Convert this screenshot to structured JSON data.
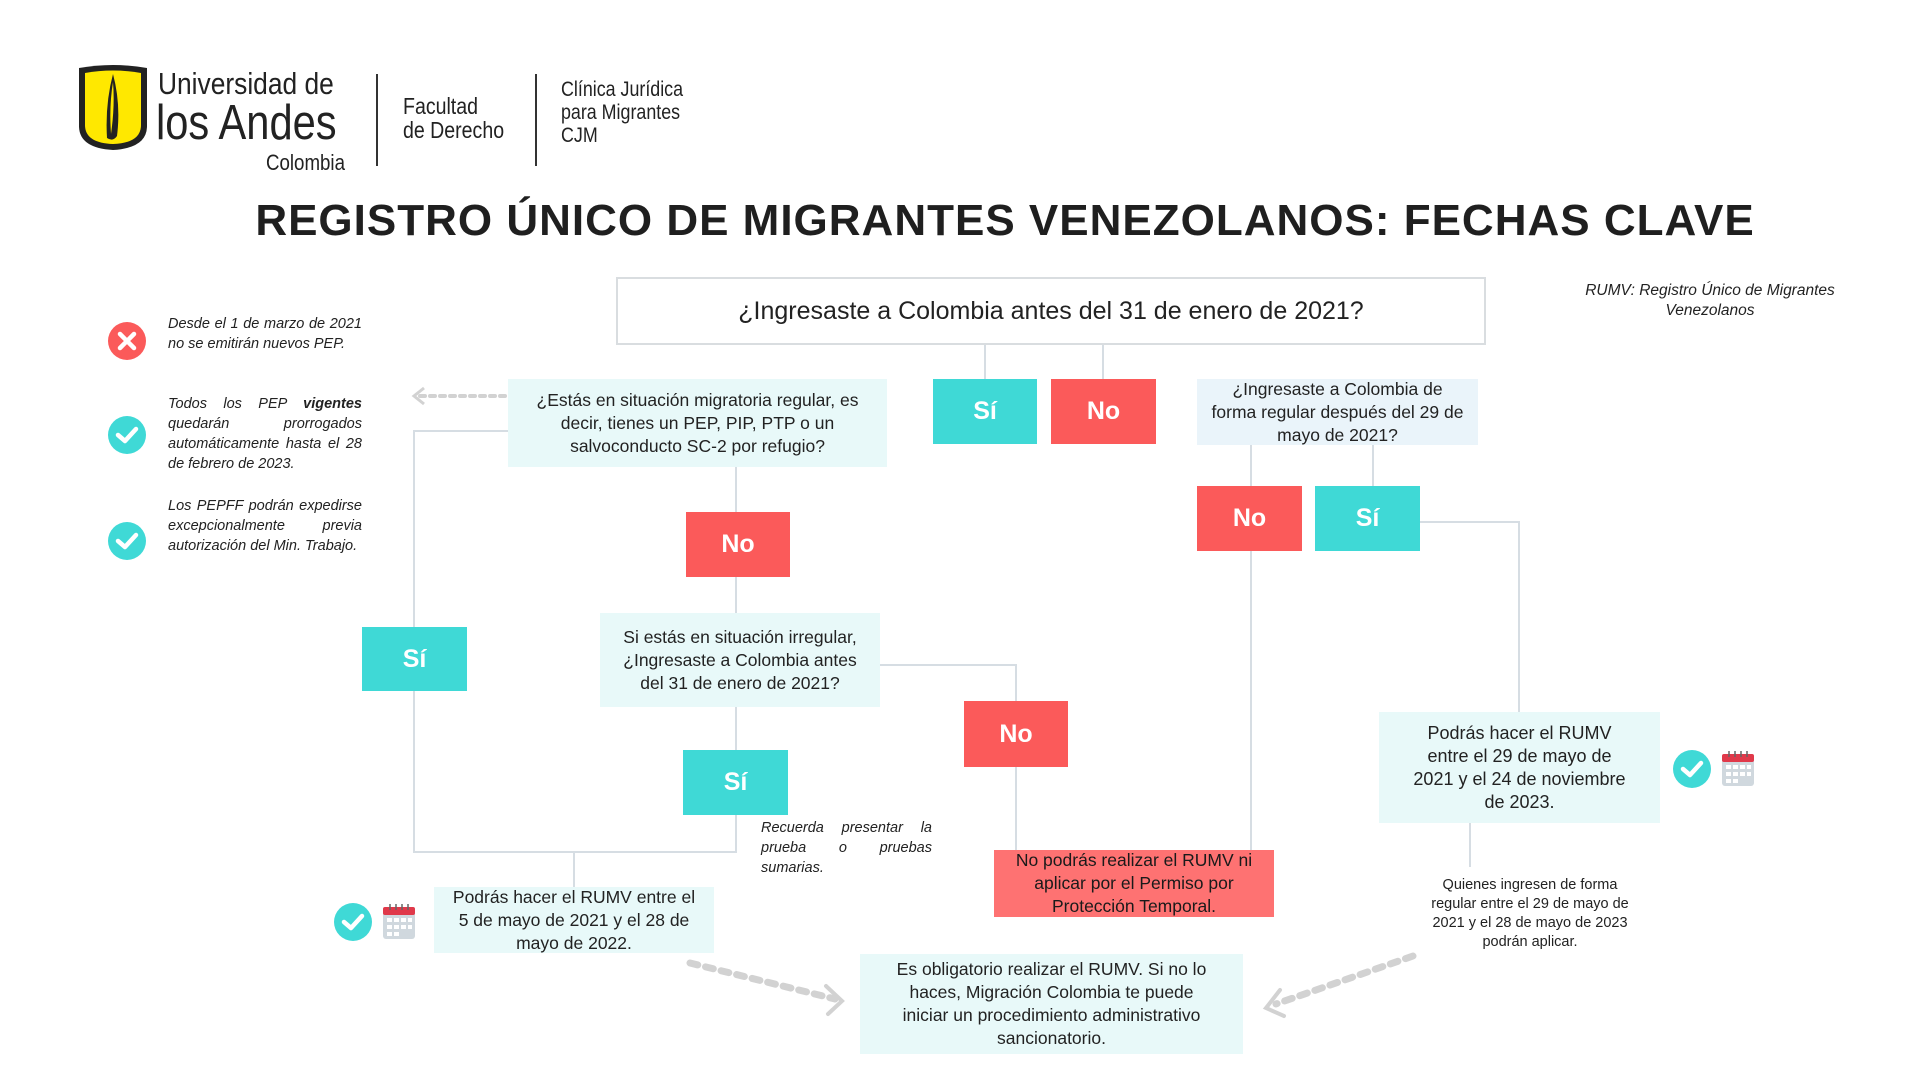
{
  "header": {
    "university_line1": "Universidad de",
    "university_line2": "los Andes",
    "university_line3": "Colombia",
    "faculty_line1": "Facultad",
    "faculty_line2": "de Derecho",
    "clinic_line1": "Clínica Jurídica",
    "clinic_line2": "para Migrantes",
    "clinic_line3": "CJM"
  },
  "title": "REGISTRO ÚNICO DE MIGRANTES VENEZOLANOS: FECHAS CLAVE",
  "glossary": "RUMV: Registro Único de Migrantes Venezolanos",
  "notes": [
    {
      "icon": "x-circle-icon",
      "text": "Desde el 1 de marzo de 2021 no se emitirán nuevos PEP."
    },
    {
      "icon": "check-circle-icon",
      "text_before": "Todos los PEP ",
      "text_bold": "vigentes",
      "text_after": " quedarán prorrogados automáticamente hasta el 28 de febrero de 2023."
    },
    {
      "icon": "check-circle-icon",
      "text": "Los PEPFF podrán expedirse excepcionalmente previa autorización del Min. Trabajo."
    }
  ],
  "flow": {
    "q_main": "¿Ingresaste a Colombia antes del 31 de enero de 2021?",
    "q_regular": "¿Estás en situación migratoria regular, es decir, tienes un PEP, PIP, PTP o un salvoconducto SC-2 por refugio?",
    "q_after": "¿Ingresaste a Colombia de forma regular después del 29 de mayo de 2021?",
    "q_irregular": "Si estás en situación irregular, ¿Ingresaste a Colombia antes del 31 de enero de 2021?",
    "yes": "Sí",
    "no": "No",
    "reminder": "Recuerda presentar la prueba o pruebas sumarias.",
    "result_may2022": "Podrás hacer el RUMV entre el 5 de mayo de 2021 y el 28 de mayo de 2022.",
    "result_nov2023": "Podrás hacer el RUMV entre el 29 de mayo de 2021 y el 24 de noviembre de 2023.",
    "result_denied": "No podrás realizar el RUMV ni aplicar por el Permiso por Protección Temporal.",
    "late_entry_note": "Quienes ingresen de forma regular entre el 29 de mayo de 2021 y el 28 de mayo de 2023 podrán aplicar.",
    "mandatory": "Es obligatorio realizar el RUMV. Si no lo haces, Migración Colombia te puede iniciar un procedimiento administrativo sancionatorio."
  },
  "colors": {
    "yes": "#3fd9d6",
    "no": "#fb5a5a",
    "light": "#e8f9f9",
    "denied": "#fe7272"
  }
}
